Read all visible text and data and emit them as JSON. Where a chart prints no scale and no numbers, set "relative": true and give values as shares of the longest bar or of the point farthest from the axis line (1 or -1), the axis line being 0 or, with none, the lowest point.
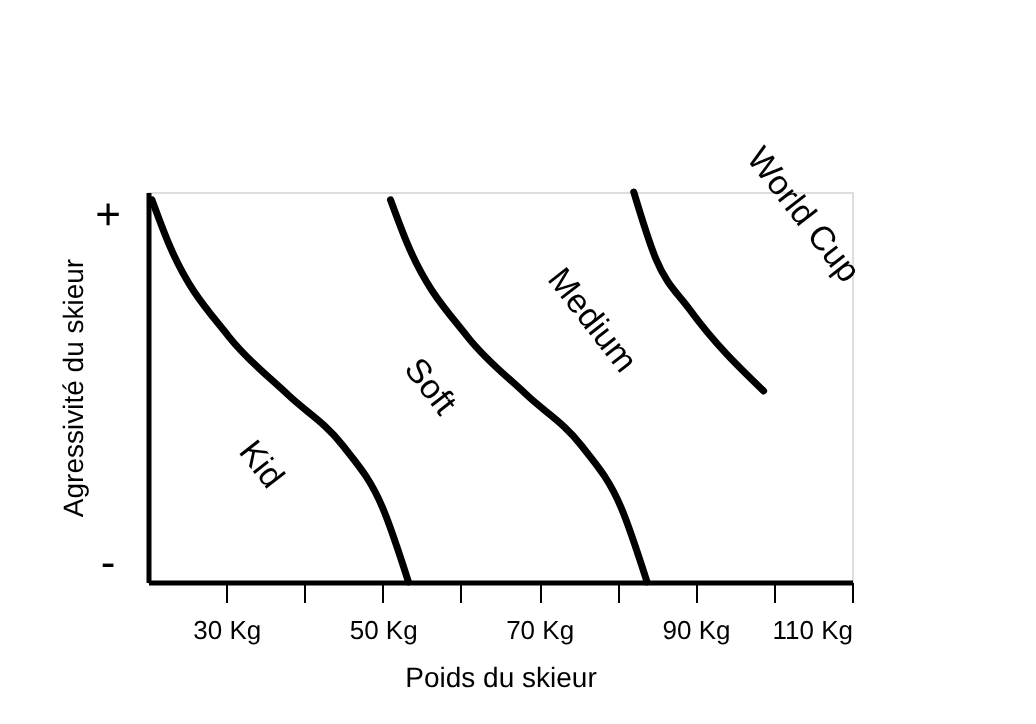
{
  "chart_data": {
    "type": "line",
    "xlabel": "Poids du skieur",
    "ylabel": "Agressivité du skieur",
    "relative": true,
    "xlim": [
      20,
      110
    ],
    "xticks": [
      {
        "value": 30,
        "label": "30 Kg"
      },
      {
        "value": 40,
        "label": null
      },
      {
        "value": 50,
        "label": "50 Kg"
      },
      {
        "value": 60,
        "label": null
      },
      {
        "value": 70,
        "label": "70 Kg"
      },
      {
        "value": 80,
        "label": null
      },
      {
        "value": 90,
        "label": "90 Kg"
      },
      {
        "value": 100,
        "label": null
      },
      {
        "value": 110,
        "label": "110 Kg"
      }
    ],
    "grid": false,
    "legend": false,
    "marker": "none",
    "line_style": "solid",
    "series": [
      {
        "color": "#000000",
        "x": [
          20.5,
          22.6,
          30.3,
          37.9,
          44.9,
          50,
          53.3
        ],
        "values": [
          0.98,
          0.87,
          0.63,
          0.48,
          0.35,
          0.19,
          0
        ]
      },
      {
        "color": "#000000",
        "x": [
          51,
          53.1,
          60.8,
          68.4,
          75.4,
          80.5,
          83.8
        ],
        "values": [
          0.98,
          0.87,
          0.63,
          0.48,
          0.35,
          0.19,
          0
        ]
      },
      {
        "color": "#000000",
        "x": [
          82.1,
          84.9,
          89.2,
          98.7
        ],
        "values": [
          1,
          0.83,
          0.7,
          0.49
        ]
      }
    ],
    "annotations": [
      "Kid",
      "Soft",
      "Medium",
      "World Cup",
      "+",
      "-"
    ]
  }
}
